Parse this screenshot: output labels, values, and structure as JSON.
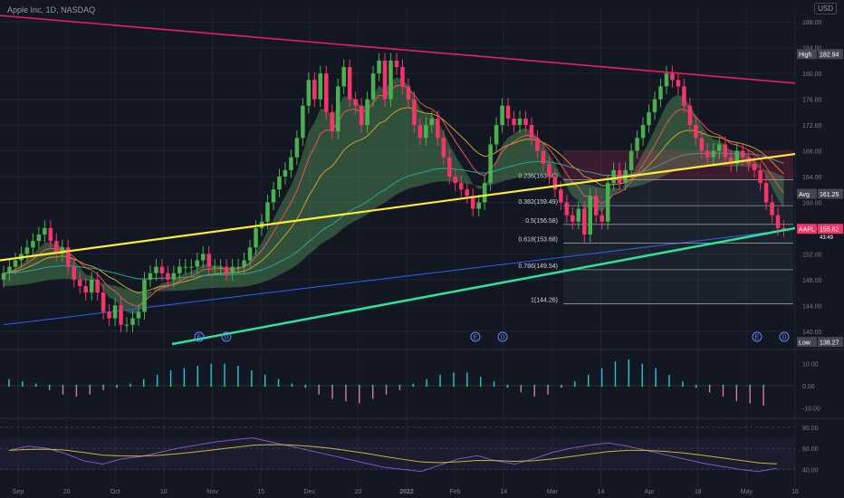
{
  "legend": {
    "symbol": "Apple Inc",
    "interval": "1D",
    "exchange": "NASDAQ"
  },
  "currency": "USD",
  "colors": {
    "bg": "#131722",
    "grid": "#1f2330",
    "up": "#4caf50",
    "down": "#f23669",
    "band": "#66bb6a",
    "trend_top": "#e91e63",
    "trend_mid": "#ffeb3b",
    "trend_bot": "#2de39a",
    "ma_blue": "#2962ff",
    "ma_red": "#ef5350"
  },
  "chart_data": [
    {
      "type": "candlestick",
      "x_ticks": [
        "Sep",
        "20",
        "Oct",
        "18",
        "Nov",
        "15",
        "Dec",
        "20",
        "2022",
        "Feb",
        "14",
        "Mar",
        "14",
        "Apr",
        "18",
        "May",
        "16"
      ],
      "y_ticks": [
        140.0,
        144.0,
        148.0,
        152.0,
        156.0,
        160.0,
        164.0,
        168.0,
        172.0,
        176.0,
        180.0,
        184.0,
        188.0
      ],
      "ylim": [
        138,
        190
      ],
      "closes": [
        149,
        150,
        151,
        152,
        153,
        154,
        155,
        156,
        154,
        152,
        153,
        150,
        148,
        147,
        146,
        148,
        146,
        143,
        142,
        144,
        141,
        141,
        142,
        143,
        148,
        149,
        150,
        149,
        148,
        149,
        150,
        150,
        150,
        151,
        152,
        150,
        150,
        150,
        149,
        150,
        150,
        151,
        153,
        156,
        157,
        160,
        162,
        164,
        165,
        167,
        170,
        175,
        179,
        176,
        180,
        174,
        171,
        178,
        181,
        176,
        175,
        172,
        176,
        180,
        182,
        176,
        182,
        181,
        178,
        176,
        172,
        170,
        172,
        173,
        170,
        167,
        164,
        163,
        162,
        161,
        159,
        160,
        163,
        169,
        172,
        175,
        173,
        172,
        173,
        172,
        170,
        168,
        166,
        164,
        162,
        160,
        158,
        157,
        159,
        155,
        161,
        158,
        157,
        163,
        165,
        163,
        165,
        168,
        170,
        172,
        174,
        176,
        178,
        180,
        179,
        178,
        175,
        172,
        170,
        168,
        167,
        168,
        169,
        167,
        166,
        168,
        167,
        166,
        165,
        163,
        160,
        158,
        156,
        155.82
      ],
      "price_labels": [
        {
          "name": "High",
          "value": 182.94
        },
        {
          "name": "Avg",
          "value": 161.25
        },
        {
          "name": "AAPL",
          "value": 155.82,
          "countdown": "43:49"
        },
        {
          "name": "Low",
          "value": 138.27
        }
      ],
      "fib_levels": [
        {
          "label": "0.236(163.50)",
          "value": 163.5
        },
        {
          "label": "0.382(159.49)",
          "value": 159.49
        },
        {
          "label": "0.5(156.58)",
          "value": 156.58
        },
        {
          "label": "0.618(153.68)",
          "value": 153.68
        },
        {
          "label": "0.786(149.54)",
          "value": 149.54
        },
        {
          "label": "1(144.26)",
          "value": 144.26
        }
      ],
      "events": [
        "E",
        "D",
        "E",
        "D",
        "E",
        "D"
      ]
    },
    {
      "type": "bar",
      "name": "oscillator",
      "y_ticks": [
        10.0,
        0.0,
        -10.0
      ],
      "ylim": [
        -14,
        14
      ],
      "values": [
        3,
        2,
        1,
        -2,
        -4,
        -5,
        -4,
        -2,
        -1,
        1,
        3,
        5,
        7,
        8,
        9,
        10,
        10,
        9,
        7,
        5,
        3,
        1,
        -1,
        -4,
        -6,
        -7,
        -8,
        -6,
        -4,
        -2,
        1,
        3,
        5,
        6,
        6,
        4,
        2,
        -1,
        -3,
        -5,
        -4,
        -1,
        2,
        5,
        8,
        11,
        12,
        10,
        8,
        5,
        2,
        -1,
        -3,
        -5,
        -7,
        -8,
        -9
      ]
    },
    {
      "type": "line",
      "name": "RSI",
      "y_ticks": [
        80.0,
        60.0,
        40.0
      ],
      "ylim": [
        30,
        85
      ],
      "values": [
        58,
        62,
        60,
        55,
        48,
        45,
        50,
        52,
        56,
        60,
        63,
        66,
        68,
        70,
        66,
        62,
        58,
        54,
        50,
        46,
        42,
        40,
        38,
        44,
        50,
        53,
        48,
        45,
        50,
        56,
        60,
        63,
        65,
        62,
        58,
        54,
        50,
        46,
        43,
        40,
        38,
        41
      ]
    }
  ]
}
